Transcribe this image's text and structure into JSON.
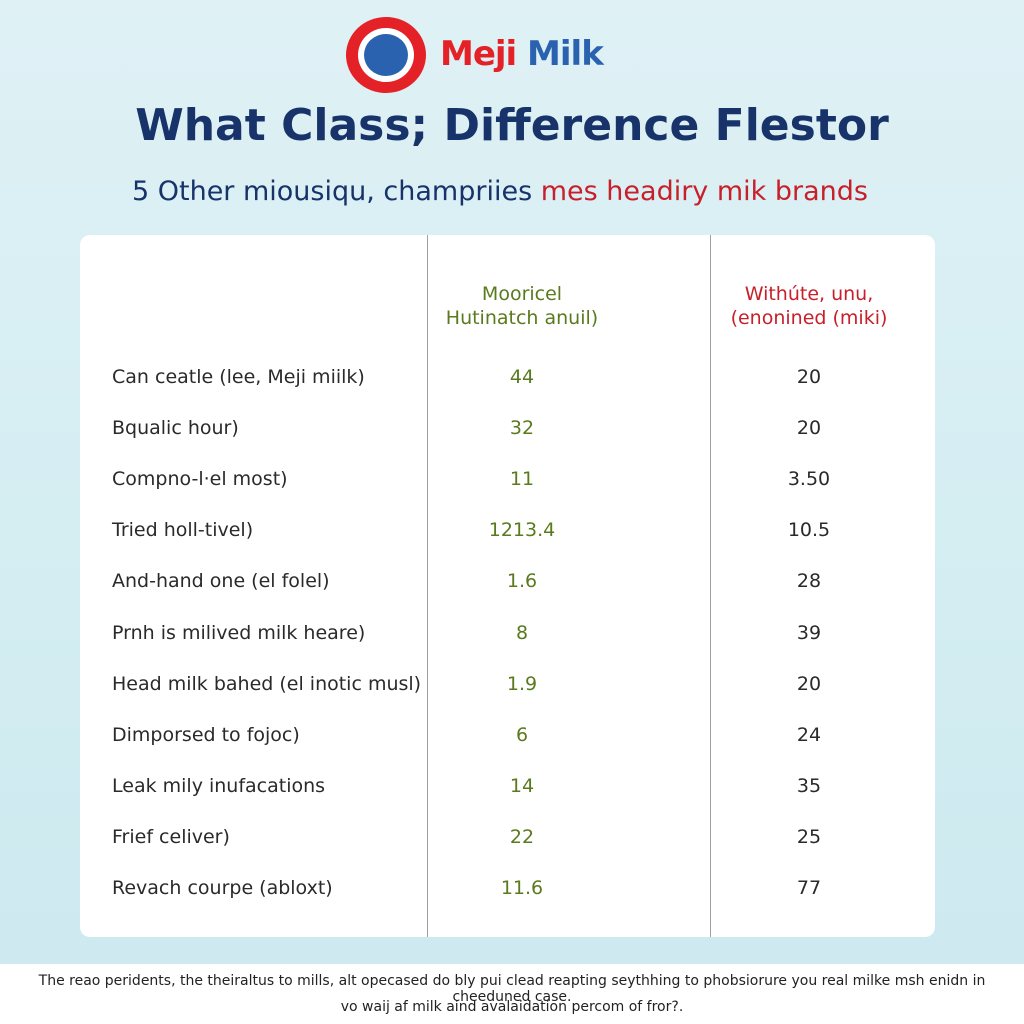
{
  "logo": {
    "red_word": "Meji",
    "blue_word": "Milk"
  },
  "title": "What Class; Difference Flestor",
  "subtitle": {
    "dark_part": "5 Other miousiqu, champriies",
    "red_part": "mes headiry mik brands"
  },
  "table": {
    "headers": [
      [
        "Mooricel",
        "Hutinatch anuil)"
      ],
      [
        "Withúte, unu,",
        "(enonined (miki)"
      ]
    ],
    "rows": [
      [
        "Can ceatle (lee, Meji miilk)",
        "44",
        "20"
      ],
      [
        "Bqualic hour)",
        "32",
        "20"
      ],
      [
        "Compno-l·el most)",
        "11",
        "3.50"
      ],
      [
        "Tried holl-tivel)",
        "1213.4",
        "10.5"
      ],
      [
        "And-hand one (el folel)",
        "1.6",
        "28"
      ],
      [
        "Prnh is milived milk heare)",
        "8",
        "39"
      ],
      [
        "Head milk bahed (el inotic musl)",
        "1.9",
        "20"
      ],
      [
        "Dimporsed to fojoc)",
        "6",
        "24"
      ],
      [
        "Leak mily inufacations",
        "14",
        "35"
      ],
      [
        "Frief celiver)",
        "22",
        "25"
      ],
      [
        "Revach courpe (abloxt)",
        "11.6",
        "77"
      ]
    ]
  },
  "footer": [
    "The reao peridents, the theiraltus to mills, alt opecased do bly pui clead reapting seythhing to phobsiorure you real milke msh enidn in cheeduned case.",
    "vo waij af milk aind avalaidation percom of fror?."
  ]
}
